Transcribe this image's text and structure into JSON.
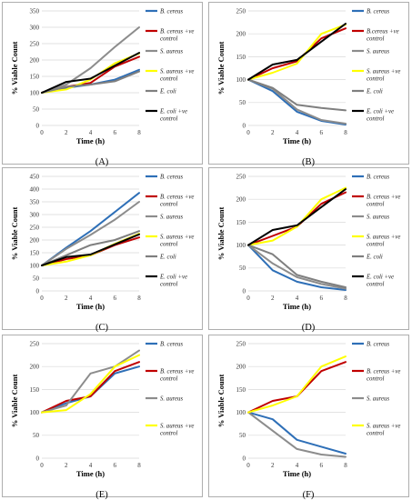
{
  "figure": {
    "colors": {
      "B. cereus": "#2e6fb7",
      "B. cereus +ve control": "#c00000",
      "S. aureus": "#8c8c8c",
      "S. aureus +ve control": "#ffff00",
      "E. coli": "#7f7f7f",
      "E. coli +ve control": "#000000"
    }
  },
  "chart_data": [
    {
      "type": "line",
      "label": "(A)",
      "xlabel": "Time (h)",
      "ylabel": "% Viable Count",
      "x": [
        0,
        2,
        4,
        6,
        8
      ],
      "xlim": [
        0,
        8
      ],
      "ylim": [
        0,
        350
      ],
      "yticks": [
        0,
        50,
        100,
        150,
        200,
        250,
        300,
        350
      ],
      "grid": "horizontal",
      "legend": "right",
      "series": [
        {
          "name": "B. cereus",
          "values": [
            100,
            115,
            125,
            140,
            170
          ]
        },
        {
          "name": "B. cereus +ve control",
          "values": [
            100,
            118,
            130,
            180,
            210
          ]
        },
        {
          "name": "S. aureus",
          "values": [
            100,
            125,
            175,
            240,
            300
          ]
        },
        {
          "name": "S. aureus +ve control",
          "values": [
            100,
            110,
            140,
            190,
            220
          ]
        },
        {
          "name": "E. coli",
          "values": [
            100,
            118,
            125,
            135,
            165
          ]
        },
        {
          "name": "E. coli +ve control",
          "values": [
            100,
            133,
            143,
            183,
            222
          ]
        }
      ]
    },
    {
      "type": "line",
      "label": "(B)",
      "xlabel": "Time (h)",
      "ylabel": "% Viable Count",
      "x": [
        0,
        2,
        4,
        6,
        8
      ],
      "xlim": [
        0,
        8
      ],
      "ylim": [
        0,
        250
      ],
      "yticks": [
        0,
        50,
        100,
        150,
        200,
        250
      ],
      "grid": "horizontal",
      "legend": "right",
      "series": [
        {
          "name": "B. cereus",
          "values": [
            100,
            75,
            30,
            10,
            2
          ]
        },
        {
          "name": "B.cereus +ve control",
          "values": [
            100,
            125,
            140,
            190,
            212
          ]
        },
        {
          "name": "S. aureus",
          "values": [
            100,
            80,
            35,
            12,
            4
          ]
        },
        {
          "name": "S. aureus +ve control",
          "values": [
            100,
            115,
            135,
            200,
            220
          ]
        },
        {
          "name": "E. coli",
          "values": [
            100,
            82,
            45,
            38,
            33
          ]
        },
        {
          "name": "E. coli +ve control",
          "values": [
            100,
            133,
            143,
            183,
            222
          ]
        }
      ]
    },
    {
      "type": "line",
      "label": "(C)",
      "xlabel": "Time (h)",
      "ylabel": "% Viable Count",
      "x": [
        0,
        2,
        4,
        6,
        8
      ],
      "xlim": [
        0,
        8
      ],
      "ylim": [
        0,
        450
      ],
      "yticks": [
        0,
        50,
        100,
        150,
        200,
        250,
        300,
        350,
        400,
        450
      ],
      "grid": "horizontal",
      "legend": "right",
      "series": [
        {
          "name": "B. cereus",
          "values": [
            100,
            170,
            235,
            310,
            385
          ]
        },
        {
          "name": "B. cereus +ve control",
          "values": [
            100,
            125,
            140,
            180,
            210
          ]
        },
        {
          "name": "S. aureus",
          "values": [
            100,
            165,
            220,
            280,
            350
          ]
        },
        {
          "name": "S. aureus +ve control",
          "values": [
            100,
            115,
            140,
            185,
            225
          ]
        },
        {
          "name": "E. coli",
          "values": [
            100,
            140,
            180,
            200,
            235
          ]
        },
        {
          "name": "E. coli +ve control",
          "values": [
            100,
            133,
            143,
            183,
            222
          ]
        }
      ]
    },
    {
      "type": "line",
      "label": "(D)",
      "xlabel": "Time (h)",
      "ylabel": "% Viable Count",
      "x": [
        0,
        2,
        4,
        6,
        8
      ],
      "xlim": [
        0,
        8
      ],
      "ylim": [
        0,
        250
      ],
      "yticks": [
        0,
        50,
        100,
        150,
        200,
        250
      ],
      "grid": "horizontal",
      "legend": "right",
      "series": [
        {
          "name": "B. cereus",
          "values": [
            100,
            45,
            20,
            8,
            2
          ]
        },
        {
          "name": "B. cereus +ve control",
          "values": [
            100,
            120,
            140,
            190,
            215
          ]
        },
        {
          "name": "S. aureus",
          "values": [
            100,
            60,
            30,
            15,
            5
          ]
        },
        {
          "name": "S. aureus +ve control",
          "values": [
            100,
            110,
            140,
            200,
            225
          ]
        },
        {
          "name": "E. coli",
          "values": [
            100,
            80,
            35,
            20,
            8
          ]
        },
        {
          "name": "E. coli +ve control",
          "values": [
            100,
            133,
            143,
            183,
            222
          ]
        }
      ]
    },
    {
      "type": "line",
      "label": "(E)",
      "xlabel": "Time (h)",
      "ylabel": "% Viable Count",
      "x": [
        0,
        2,
        4,
        6,
        8
      ],
      "xlim": [
        0,
        8
      ],
      "ylim": [
        0,
        250
      ],
      "yticks": [
        0,
        50,
        100,
        150,
        200,
        250
      ],
      "grid": "horizontal",
      "legend": "right",
      "series": [
        {
          "name": "B. cereus",
          "values": [
            100,
            120,
            135,
            185,
            200
          ]
        },
        {
          "name": "B. cereus +ve control",
          "values": [
            100,
            125,
            135,
            190,
            210
          ]
        },
        {
          "name": "S. aureus",
          "values": [
            100,
            115,
            185,
            200,
            235
          ]
        },
        {
          "name": "S. aureus +ve control",
          "values": [
            100,
            105,
            140,
            200,
            225
          ]
        }
      ]
    },
    {
      "type": "line",
      "label": "(F)",
      "xlabel": "Time (h)",
      "ylabel": "% Viable Count",
      "x": [
        0,
        2,
        4,
        6,
        8
      ],
      "xlim": [
        0,
        8
      ],
      "ylim": [
        0,
        250
      ],
      "yticks": [
        0,
        50,
        100,
        150,
        200,
        250
      ],
      "grid": "horizontal",
      "legend": "right",
      "series": [
        {
          "name": "B. cereus",
          "values": [
            100,
            85,
            40,
            25,
            10
          ]
        },
        {
          "name": "B. cereus +ve control",
          "values": [
            100,
            125,
            135,
            190,
            210
          ]
        },
        {
          "name": "S. aureus",
          "values": [
            100,
            60,
            20,
            8,
            3
          ]
        },
        {
          "name": "S. aureus +ve control",
          "values": [
            100,
            115,
            135,
            200,
            222
          ]
        }
      ]
    }
  ]
}
